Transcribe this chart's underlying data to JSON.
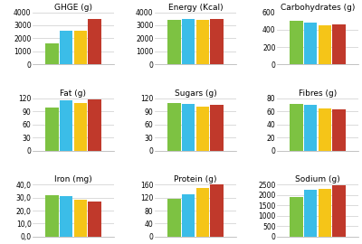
{
  "charts": [
    {
      "title": "GHGE (g)",
      "values": [
        1600,
        2600,
        2600,
        3500
      ],
      "ylim": [
        0,
        4000
      ],
      "yticks": [
        0,
        1000,
        2000,
        3000,
        4000
      ],
      "decimal_ticks": false
    },
    {
      "title": "Energy (Kcal)",
      "values": [
        3400,
        3500,
        3400,
        3500
      ],
      "ylim": [
        0,
        4000
      ],
      "yticks": [
        0,
        1000,
        2000,
        3000,
        4000
      ],
      "decimal_ticks": false
    },
    {
      "title": "Carbohydrates (g)",
      "values": [
        500,
        480,
        450,
        455
      ],
      "ylim": [
        0,
        600
      ],
      "yticks": [
        0,
        200,
        400,
        600
      ],
      "decimal_ticks": false
    },
    {
      "title": "Fat (g)",
      "values": [
        98,
        115,
        110,
        118
      ],
      "ylim": [
        0,
        120
      ],
      "yticks": [
        0,
        30,
        60,
        90,
        120
      ],
      "decimal_ticks": false
    },
    {
      "title": "Sugars (g)",
      "values": [
        110,
        108,
        100,
        105
      ],
      "ylim": [
        0,
        120
      ],
      "yticks": [
        0,
        30,
        60,
        90,
        120
      ],
      "decimal_ticks": false
    },
    {
      "title": "Fibres (g)",
      "values": [
        72,
        70,
        65,
        63
      ],
      "ylim": [
        0,
        80
      ],
      "yticks": [
        0,
        20,
        40,
        60,
        80
      ],
      "decimal_ticks": false
    },
    {
      "title": "Iron (mg)",
      "values": [
        32,
        31,
        28,
        27
      ],
      "ylim": [
        0,
        40
      ],
      "yticks": [
        0,
        10,
        20,
        30,
        40
      ],
      "decimal_ticks": true
    },
    {
      "title": "Protein (g)",
      "values": [
        115,
        130,
        150,
        160
      ],
      "ylim": [
        0,
        160
      ],
      "yticks": [
        0,
        40,
        80,
        120,
        160
      ],
      "decimal_ticks": false
    },
    {
      "title": "Sodium (g)",
      "values": [
        1900,
        2250,
        2300,
        2450
      ],
      "ylim": [
        0,
        2500
      ],
      "yticks": [
        0,
        500,
        1000,
        1500,
        2000,
        2500
      ],
      "decimal_ticks": false
    }
  ],
  "colors": [
    "#7DC242",
    "#3BBDE8",
    "#F5C518",
    "#C0392B"
  ],
  "background_color": "#FFFFFF",
  "grid_color": "#CCCCCC",
  "tick_fontsize": 5.5,
  "title_fontsize": 6.5
}
